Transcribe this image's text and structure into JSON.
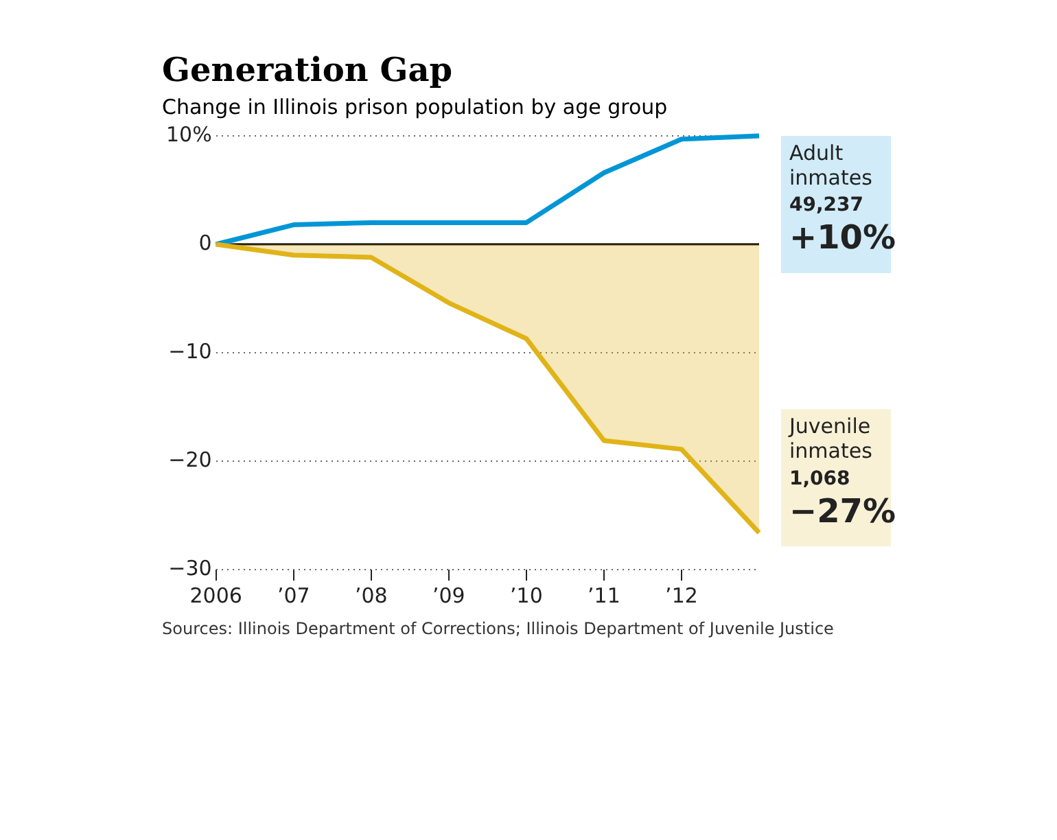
{
  "chart_data": {
    "type": "line",
    "title": "Generation Gap",
    "subtitle": "Change in Illinois prison population by age group",
    "x": [
      2006,
      2007,
      2008,
      2009,
      2010,
      2011,
      2012,
      2013
    ],
    "series": [
      {
        "name": "Adult inmates",
        "type": "line",
        "color": "#0096d6",
        "values": [
          0,
          1.8,
          2.0,
          2.0,
          2.0,
          6.6,
          9.7,
          10
        ]
      },
      {
        "name": "Juvenile inmates",
        "type": "area",
        "color": "#e0b419",
        "values": [
          0,
          -1.0,
          -1.2,
          -5.4,
          -8.7,
          -18.1,
          -18.9,
          -26.6
        ]
      }
    ],
    "xlim": [
      2006,
      2013
    ],
    "xticks": [
      2006,
      {
        "value": 2007,
        "label": "’07"
      },
      {
        "value": 2008,
        "label": "’08"
      },
      {
        "value": 2009,
        "label": "’09"
      },
      {
        "value": 2010,
        "label": "’10"
      },
      {
        "value": 2011,
        "label": "’11"
      },
      {
        "value": 2012,
        "label": "’12"
      }
    ],
    "ylim": [
      -30,
      10
    ],
    "yticks": [
      {
        "value": 10,
        "label": "10%"
      },
      0,
      {
        "value": -10,
        "label": "−10"
      },
      {
        "value": -20,
        "label": "−20"
      },
      {
        "value": -30,
        "label": "−30"
      }
    ],
    "ref_lines": [
      {
        "axis": "y",
        "value": 0,
        "color": "#000000"
      }
    ],
    "grid": "y",
    "legend": false,
    "marker": "none",
    "line_style": "solid",
    "annotations": [
      "49,237",
      "+10%",
      "1,068",
      "−27%",
      "Sources: Illinois Department of Corrections; Illinois Department of Juvenile Justice"
    ]
  }
}
